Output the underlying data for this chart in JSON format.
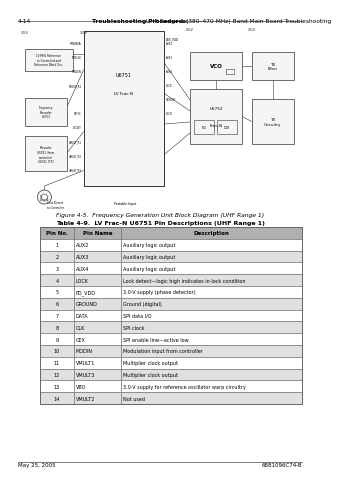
{
  "page_header_left": "4-14",
  "page_header_bold": "Troubleshooting Procedures:",
  "page_header_right": " UHF Range 1 (380–470 MHz) Band Main Board Troubleshooting",
  "figure_caption": "Figure 4-5.  Frequency Generation Unit Block Diagram (UHF Range 1)",
  "table_caption": "Table 4-9.  LV Frac-N U6751 Pin Descriptions (UHF Range 1)",
  "table_headers": [
    "Pin No.",
    "Pin Name",
    "Description"
  ],
  "table_rows": [
    [
      "1",
      "AUX2",
      "Auxiliary logic output"
    ],
    [
      "2",
      "AUX3",
      "Auxiliary logic output"
    ],
    [
      "3",
      "AUX4",
      "Auxiliary logic output"
    ],
    [
      "4",
      "LOCK",
      "Lock detect—logic high indicates in-lock condition"
    ],
    [
      "5",
      "PD_VDD",
      "3.0-V supply (phase detector)"
    ],
    [
      "6",
      "GROUND",
      "Ground (digital)"
    ],
    [
      "7",
      "DATA",
      "SPI data I/O"
    ],
    [
      "8",
      "CLK",
      "SPI clock"
    ],
    [
      "9",
      "CEX",
      "SPI enable line—active low"
    ],
    [
      "10",
      "MODIN",
      "Modulation input from controller"
    ],
    [
      "11",
      "VMULT1",
      "Multiplier clock output"
    ],
    [
      "12",
      "VMULT3",
      "Multiplier clock output"
    ],
    [
      "13",
      "VBO",
      "3.0-V supply for reference oscillator warp circuitry"
    ],
    [
      "14",
      "VMULT2",
      "Not used"
    ]
  ],
  "page_footer_left": "May 25, 2005",
  "page_footer_right": "6881096C74-B",
  "bg_color": "#ffffff",
  "text_color": "#000000",
  "table_header_bg": "#b0b0b0",
  "table_row_bg": "#ffffff",
  "table_row_bg_alt": "#e0e0e0",
  "table_border_color": "#666666",
  "diagram_line": "#333333",
  "diagram_fill": "#f5f5f5",
  "header_line_color": "#444444",
  "footer_line_color": "#444444"
}
